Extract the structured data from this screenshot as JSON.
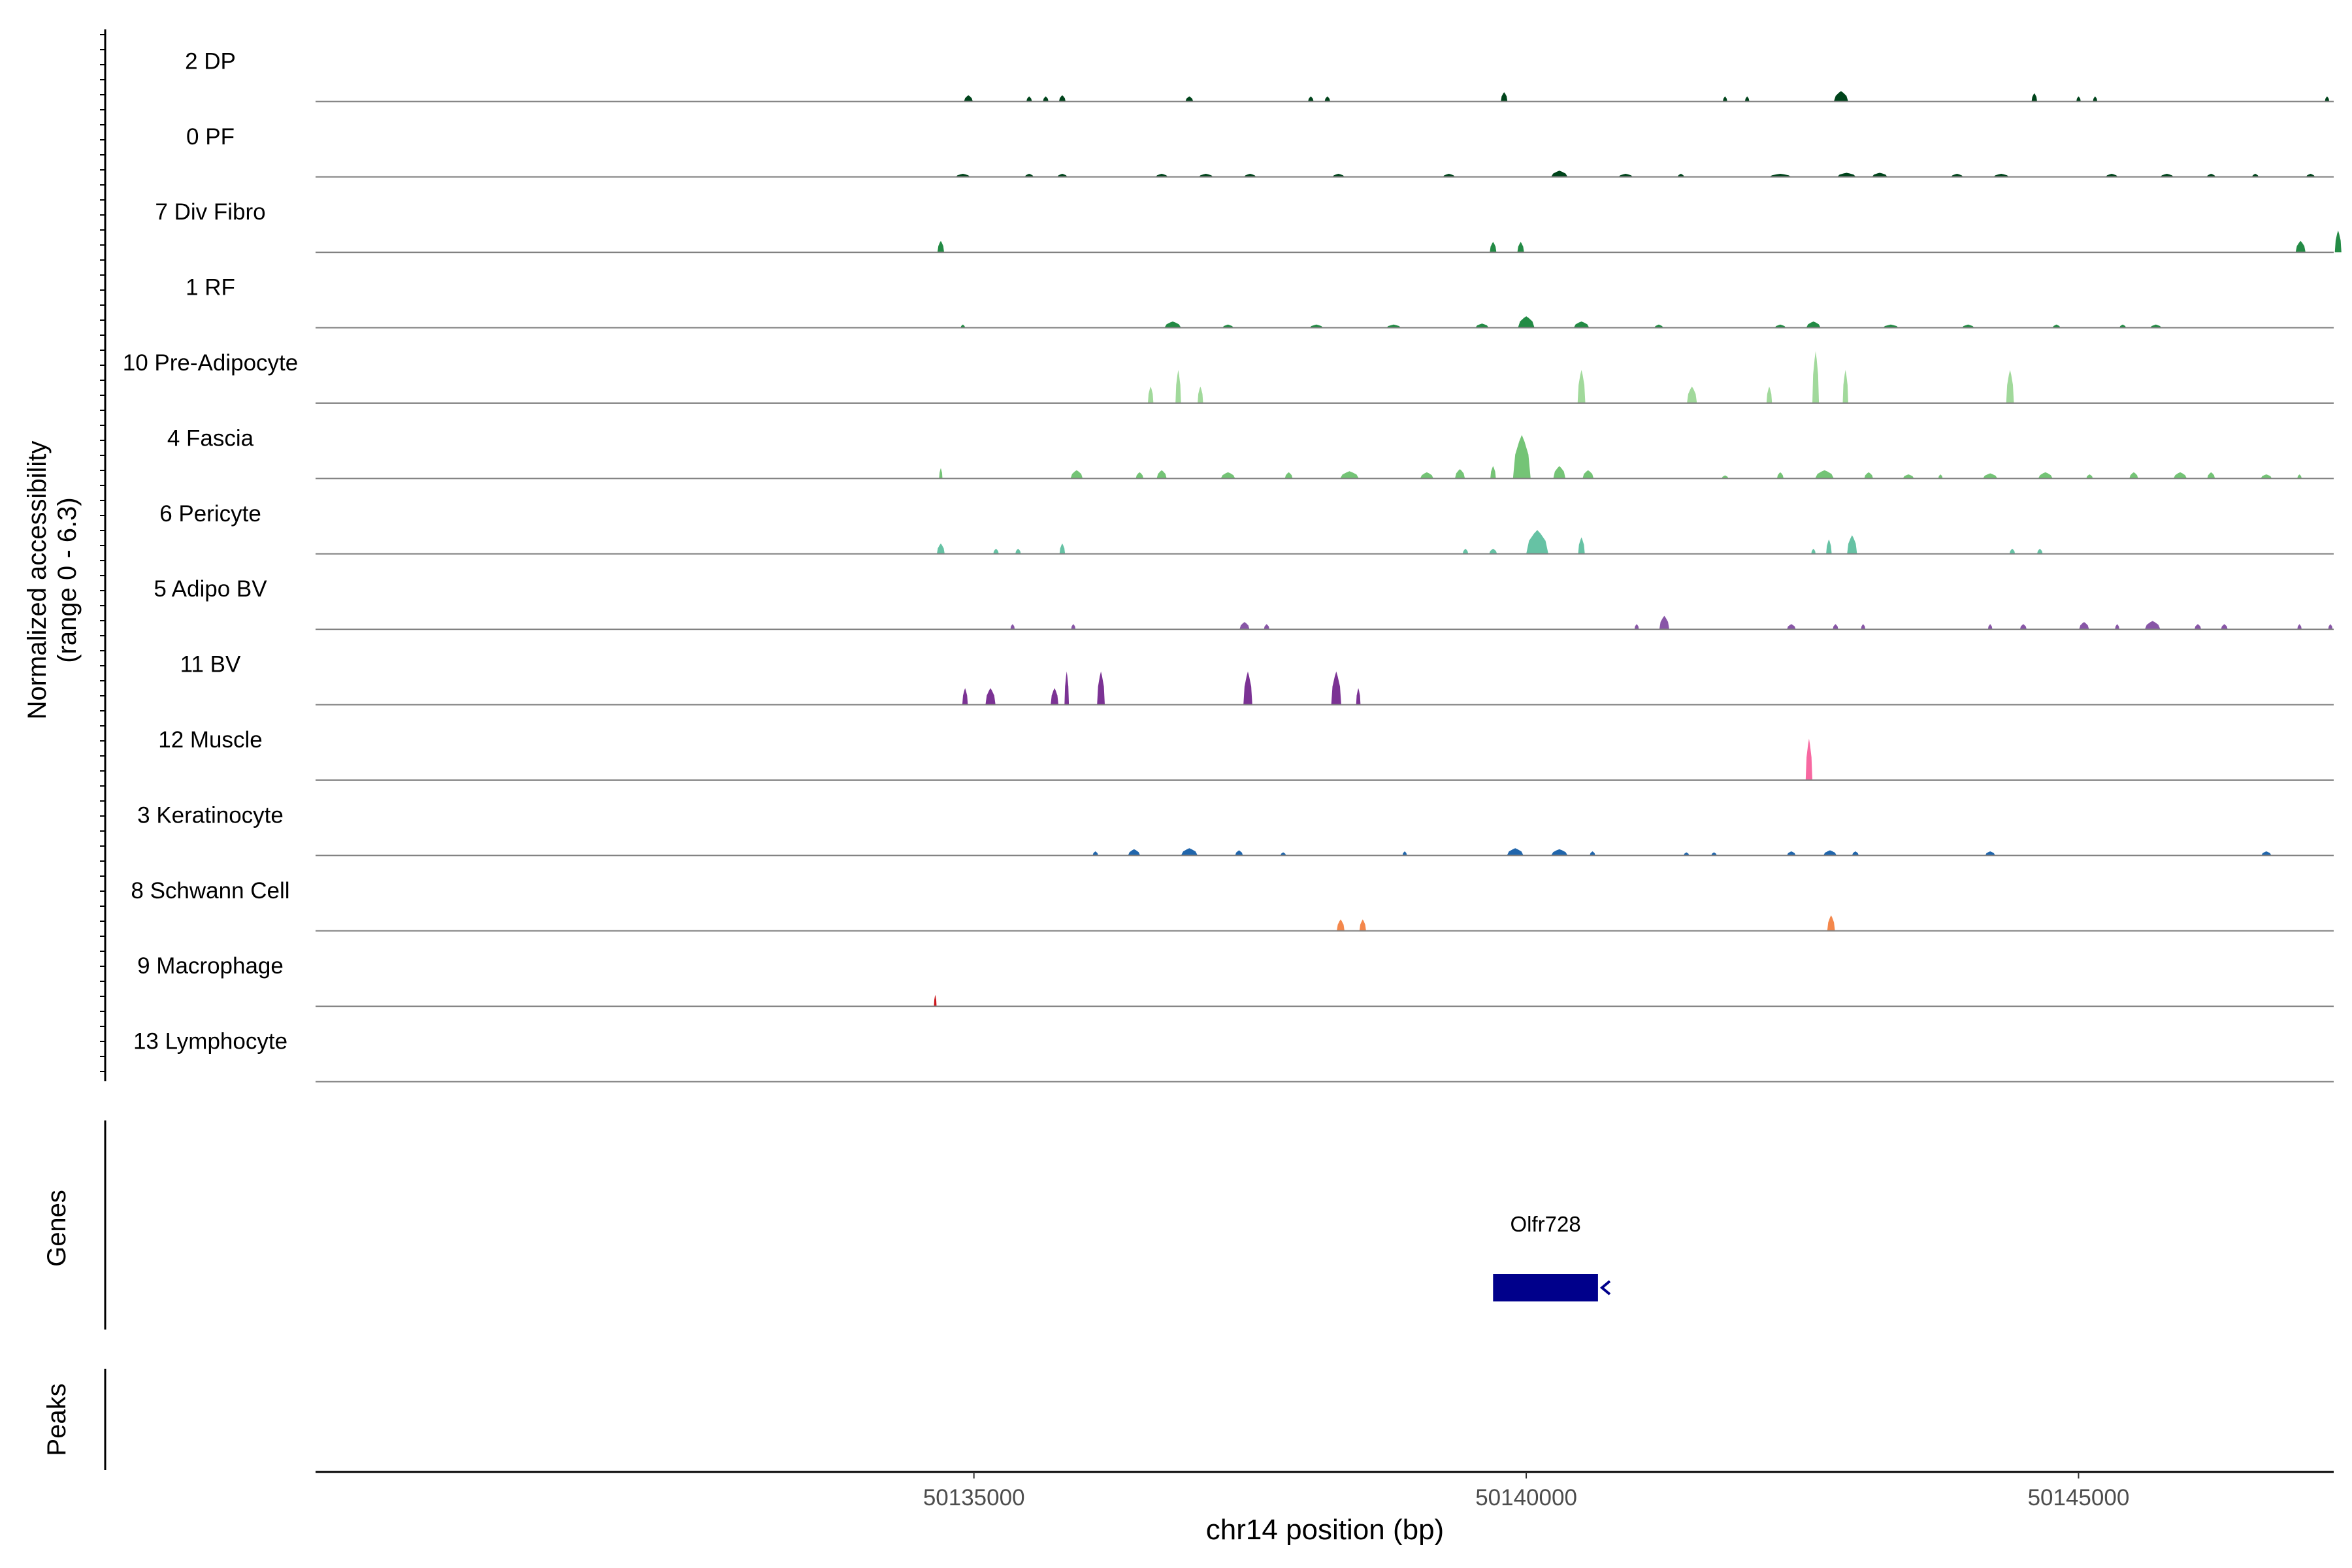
{
  "chart_data": {
    "type": "area",
    "y_axis_label_line1": "Normalized accessibility",
    "y_axis_label_line2": "(range 0 - 6.3)",
    "ylim": [
      0,
      6.3
    ],
    "xlabel": "chr14 position (bp)",
    "xlim": [
      50129040,
      50147310
    ],
    "x_ticks": [
      50135000,
      50140000,
      50145000
    ],
    "x_tick_labels": [
      "50135000",
      "50140000",
      "50145000"
    ],
    "genes_track_label": "Genes",
    "peaks_track_label": "Peaks",
    "gene": {
      "name": "Olfr728",
      "start": 50139700,
      "end": 50140650,
      "strand": "-",
      "color": "#00008B"
    },
    "series": [
      {
        "name": "2 DP",
        "color": "#00441B",
        "peaks": [
          [
            50134950,
            0.6,
            80
          ],
          [
            50135500,
            0.5,
            50
          ],
          [
            50135650,
            0.5,
            50
          ],
          [
            50135800,
            0.6,
            60
          ],
          [
            50136950,
            0.5,
            70
          ],
          [
            50138050,
            0.5,
            50
          ],
          [
            50138200,
            0.5,
            50
          ],
          [
            50139800,
            0.9,
            60
          ],
          [
            50141800,
            0.5,
            40
          ],
          [
            50142000,
            0.5,
            40
          ],
          [
            50142850,
            1.0,
            130
          ],
          [
            50144600,
            0.8,
            50
          ],
          [
            50145000,
            0.5,
            40
          ],
          [
            50145150,
            0.5,
            40
          ],
          [
            50147250,
            0.5,
            40
          ]
        ]
      },
      {
        "name": "0 PF",
        "color": "#00441B",
        "peaks": [
          [
            50134900,
            0.3,
            130
          ],
          [
            50135500,
            0.3,
            80
          ],
          [
            50135800,
            0.3,
            90
          ],
          [
            50136700,
            0.3,
            110
          ],
          [
            50137100,
            0.3,
            130
          ],
          [
            50137500,
            0.3,
            110
          ],
          [
            50138300,
            0.3,
            110
          ],
          [
            50139300,
            0.3,
            110
          ],
          [
            50140300,
            0.6,
            150
          ],
          [
            50140900,
            0.3,
            130
          ],
          [
            50141400,
            0.3,
            60
          ],
          [
            50142300,
            0.3,
            200
          ],
          [
            50142900,
            0.4,
            170
          ],
          [
            50143200,
            0.4,
            140
          ],
          [
            50143900,
            0.3,
            110
          ],
          [
            50144300,
            0.3,
            140
          ],
          [
            50145300,
            0.3,
            110
          ],
          [
            50145800,
            0.3,
            120
          ],
          [
            50146200,
            0.3,
            80
          ],
          [
            50146600,
            0.3,
            60
          ],
          [
            50147100,
            0.3,
            80
          ]
        ]
      },
      {
        "name": "7 Div Fibro",
        "color": "#238B45",
        "peaks": [
          [
            50134700,
            1.1,
            60
          ],
          [
            50139700,
            1.0,
            60
          ],
          [
            50139950,
            1.0,
            60
          ],
          [
            50147010,
            1.1,
            90
          ],
          [
            50147350,
            2.1,
            60
          ]
        ]
      },
      {
        "name": "1 RF",
        "color": "#238B45",
        "peaks": [
          [
            50134900,
            0.3,
            40
          ],
          [
            50136800,
            0.6,
            150
          ],
          [
            50137300,
            0.3,
            100
          ],
          [
            50138100,
            0.3,
            120
          ],
          [
            50138800,
            0.3,
            130
          ],
          [
            50139600,
            0.4,
            120
          ],
          [
            50140000,
            1.1,
            150
          ],
          [
            50140500,
            0.6,
            140
          ],
          [
            50141200,
            0.3,
            80
          ],
          [
            50142300,
            0.3,
            100
          ],
          [
            50142600,
            0.6,
            130
          ],
          [
            50143300,
            0.3,
            140
          ],
          [
            50144000,
            0.3,
            110
          ],
          [
            50144800,
            0.3,
            70
          ],
          [
            50145400,
            0.3,
            60
          ],
          [
            50145700,
            0.3,
            100
          ]
        ]
      },
      {
        "name": "10 Pre-Adipocyte",
        "color": "#A1D99B",
        "peaks": [
          [
            50136600,
            1.6,
            50
          ],
          [
            50136850,
            3.2,
            50
          ],
          [
            50137050,
            1.6,
            50
          ],
          [
            50140500,
            3.2,
            70
          ],
          [
            50141500,
            1.6,
            90
          ],
          [
            50142200,
            1.6,
            50
          ],
          [
            50142620,
            5.0,
            60
          ],
          [
            50142890,
            3.2,
            50
          ],
          [
            50144380,
            3.2,
            70
          ]
        ]
      },
      {
        "name": "4 Fascia",
        "color": "#74C476",
        "peaks": [
          [
            50134700,
            1.0,
            30
          ],
          [
            50135930,
            0.8,
            110
          ],
          [
            50136500,
            0.6,
            70
          ],
          [
            50136700,
            0.8,
            90
          ],
          [
            50137300,
            0.6,
            130
          ],
          [
            50137850,
            0.6,
            70
          ],
          [
            50138400,
            0.7,
            170
          ],
          [
            50139100,
            0.6,
            120
          ],
          [
            50139400,
            0.9,
            90
          ],
          [
            50139700,
            1.2,
            50
          ],
          [
            50139960,
            4.2,
            160
          ],
          [
            50140300,
            1.2,
            110
          ],
          [
            50140560,
            0.8,
            100
          ],
          [
            50141800,
            0.3,
            60
          ],
          [
            50142300,
            0.6,
            60
          ],
          [
            50142700,
            0.8,
            170
          ],
          [
            50143100,
            0.6,
            80
          ],
          [
            50143460,
            0.4,
            100
          ],
          [
            50143750,
            0.4,
            40
          ],
          [
            50144200,
            0.5,
            130
          ],
          [
            50144700,
            0.6,
            130
          ],
          [
            50145100,
            0.4,
            60
          ],
          [
            50145500,
            0.6,
            80
          ],
          [
            50145920,
            0.6,
            120
          ],
          [
            50146200,
            0.6,
            70
          ],
          [
            50146700,
            0.4,
            100
          ],
          [
            50147000,
            0.4,
            40
          ]
        ]
      },
      {
        "name": "6 Pericyte",
        "color": "#66C2A4",
        "peaks": [
          [
            50134700,
            1.0,
            70
          ],
          [
            50135200,
            0.5,
            50
          ],
          [
            50135400,
            0.5,
            50
          ],
          [
            50135800,
            1.0,
            50
          ],
          [
            50139450,
            0.5,
            50
          ],
          [
            50139700,
            0.5,
            70
          ],
          [
            50140100,
            2.3,
            200
          ],
          [
            50140500,
            1.6,
            60
          ],
          [
            50142600,
            0.5,
            40
          ],
          [
            50142740,
            1.4,
            50
          ],
          [
            50142950,
            1.8,
            90
          ],
          [
            50144400,
            0.5,
            50
          ],
          [
            50144650,
            0.5,
            50
          ]
        ]
      },
      {
        "name": "5 Adipo BV",
        "color": "#8856A7",
        "peaks": [
          [
            50135350,
            0.5,
            40
          ],
          [
            50135900,
            0.5,
            40
          ],
          [
            50137450,
            0.7,
            90
          ],
          [
            50137650,
            0.5,
            50
          ],
          [
            50141000,
            0.5,
            40
          ],
          [
            50141250,
            1.3,
            90
          ],
          [
            50142400,
            0.5,
            80
          ],
          [
            50142800,
            0.5,
            50
          ],
          [
            50143050,
            0.5,
            40
          ],
          [
            50144200,
            0.5,
            40
          ],
          [
            50144500,
            0.5,
            60
          ],
          [
            50145050,
            0.7,
            90
          ],
          [
            50145350,
            0.5,
            40
          ],
          [
            50145670,
            0.8,
            140
          ],
          [
            50146080,
            0.5,
            60
          ],
          [
            50146320,
            0.5,
            60
          ],
          [
            50147000,
            0.5,
            40
          ],
          [
            50147280,
            0.5,
            40
          ]
        ]
      },
      {
        "name": "11 BV",
        "color": "#7B3294",
        "peaks": [
          [
            50134920,
            1.6,
            50
          ],
          [
            50135150,
            1.6,
            90
          ],
          [
            50135730,
            1.6,
            70
          ],
          [
            50135840,
            3.2,
            40
          ],
          [
            50136150,
            3.2,
            70
          ],
          [
            50137480,
            3.2,
            80
          ],
          [
            50138280,
            3.2,
            90
          ],
          [
            50138480,
            1.6,
            40
          ]
        ]
      },
      {
        "name": "12 Muscle",
        "color": "#F768A1",
        "peaks": [
          [
            50142560,
            4.0,
            60
          ]
        ]
      },
      {
        "name": "3 Keratinocyte",
        "color": "#2166AC",
        "peaks": [
          [
            50136100,
            0.4,
            50
          ],
          [
            50136450,
            0.6,
            110
          ],
          [
            50136950,
            0.7,
            150
          ],
          [
            50137400,
            0.5,
            70
          ],
          [
            50137800,
            0.3,
            50
          ],
          [
            50138900,
            0.4,
            40
          ],
          [
            50139900,
            0.7,
            150
          ],
          [
            50140300,
            0.6,
            150
          ],
          [
            50140600,
            0.4,
            50
          ],
          [
            50141450,
            0.3,
            50
          ],
          [
            50141700,
            0.3,
            50
          ],
          [
            50142400,
            0.4,
            80
          ],
          [
            50142750,
            0.5,
            120
          ],
          [
            50142980,
            0.4,
            60
          ],
          [
            50144200,
            0.4,
            90
          ],
          [
            50146700,
            0.4,
            90
          ]
        ]
      },
      {
        "name": "8 Schwann Cell",
        "color": "#F4874B",
        "peaks": [
          [
            50138320,
            1.1,
            70
          ],
          [
            50138520,
            1.1,
            60
          ],
          [
            50142760,
            1.5,
            70
          ]
        ]
      },
      {
        "name": "9 Macrophage",
        "color": "#CB181D",
        "peaks": [
          [
            50134650,
            1.1,
            10
          ]
        ]
      },
      {
        "name": "13 Lymphocyte",
        "color": "#9E0142",
        "peaks": []
      }
    ]
  }
}
